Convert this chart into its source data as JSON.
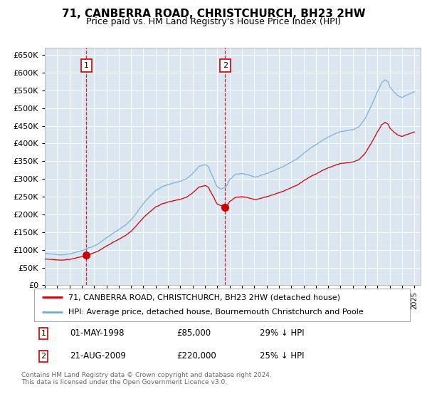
{
  "title": "71, CANBERRA ROAD, CHRISTCHURCH, BH23 2HW",
  "subtitle": "Price paid vs. HM Land Registry's House Price Index (HPI)",
  "legend_line1": "71, CANBERRA ROAD, CHRISTCHURCH, BH23 2HW (detached house)",
  "legend_line2": "HPI: Average price, detached house, Bournemouth Christchurch and Poole",
  "footnote": "Contains HM Land Registry data © Crown copyright and database right 2024.\nThis data is licensed under the Open Government Licence v3.0.",
  "transaction1": {
    "label": "1",
    "date": "01-MAY-1998",
    "price": "£85,000",
    "hpi": "29% ↓ HPI",
    "year": 1998.37
  },
  "transaction2": {
    "label": "2",
    "date": "21-AUG-2009",
    "price": "£220,000",
    "hpi": "25% ↓ HPI",
    "year": 2009.63
  },
  "hpi_color": "#6baed6",
  "price_color": "#cc0000",
  "background_color": "#dce6f1",
  "grid_color": "#ffffff",
  "ylim": [
    0,
    670000
  ],
  "xlim_start": 1995.0,
  "xlim_end": 2025.5,
  "yticks": [
    0,
    50000,
    100000,
    150000,
    200000,
    250000,
    300000,
    350000,
    400000,
    450000,
    500000,
    550000,
    600000,
    650000
  ]
}
